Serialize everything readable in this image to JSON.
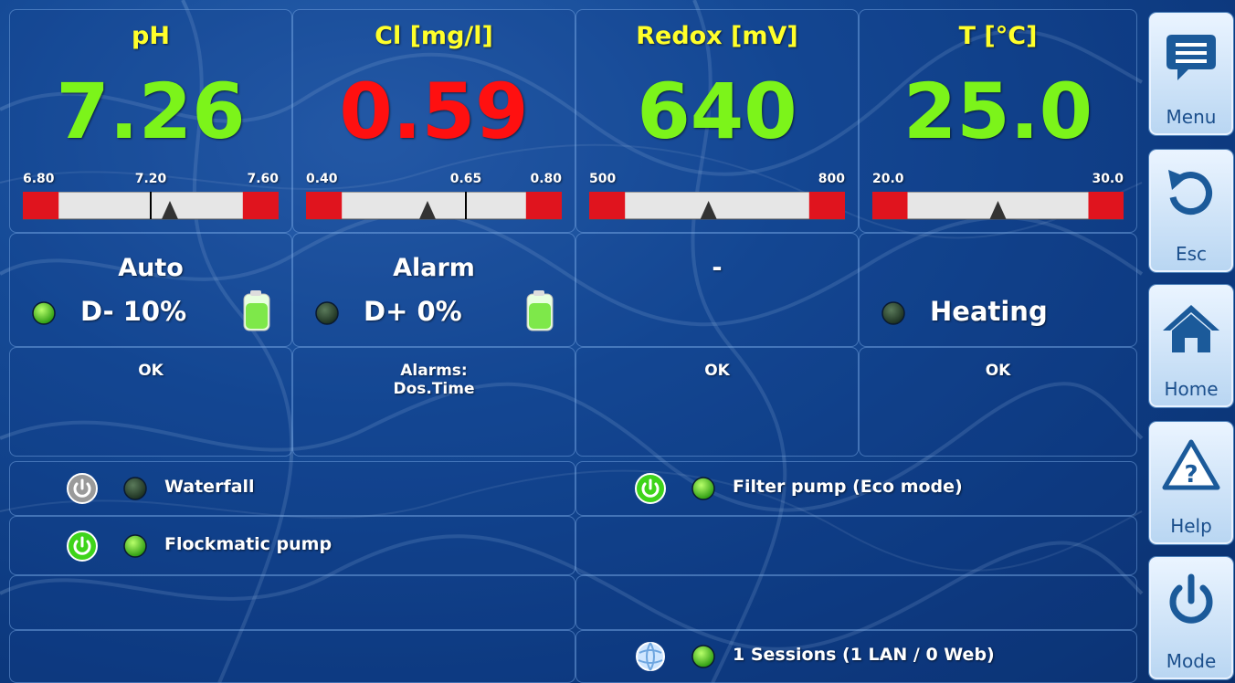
{
  "panels": [
    {
      "title": "pH",
      "value": "7.26",
      "value_color": "#7cf41a",
      "scale": {
        "min": "6.80",
        "mid": "7.20",
        "max": "7.60"
      },
      "mode": "Auto",
      "dosing": "D- 10%",
      "led": "green",
      "canister": true,
      "status": [
        "OK"
      ]
    },
    {
      "title": "Cl [mg/l]",
      "value": "0.59",
      "value_color": "#ff1010",
      "scale": {
        "min": "0.40",
        "mid": "0.65",
        "max": "0.80"
      },
      "mode": "Alarm",
      "dosing": "D+ 0%",
      "led": "dark",
      "canister": true,
      "status": [
        "Alarms:",
        "Dos.Time"
      ]
    },
    {
      "title": "Redox [mV]",
      "value": "640",
      "value_color": "#7cf41a",
      "scale": {
        "min": "500",
        "max": "800"
      },
      "mode": "-",
      "status": [
        "OK"
      ]
    },
    {
      "title": "T [°C]",
      "value": "25.0",
      "value_color": "#7cf41a",
      "scale": {
        "min": "20.0",
        "max": "30.0"
      },
      "dosing": "Heating",
      "led": "dark",
      "canister": false,
      "status": [
        "OK"
      ]
    }
  ],
  "outputs": {
    "left": [
      {
        "label": "Waterfall",
        "power": "grey",
        "led": "dark"
      },
      {
        "label": "Flockmatic pump",
        "power": "green",
        "led": "green"
      }
    ],
    "right": [
      {
        "label": "Filter pump (Eco mode)",
        "power": "green",
        "led": "green"
      }
    ]
  },
  "status_bar": {
    "label": "1 Sessions (1 LAN / 0 Web)",
    "led": "green"
  },
  "menu": [
    "Menu",
    "Esc",
    "Home",
    "Help",
    "Mode"
  ]
}
